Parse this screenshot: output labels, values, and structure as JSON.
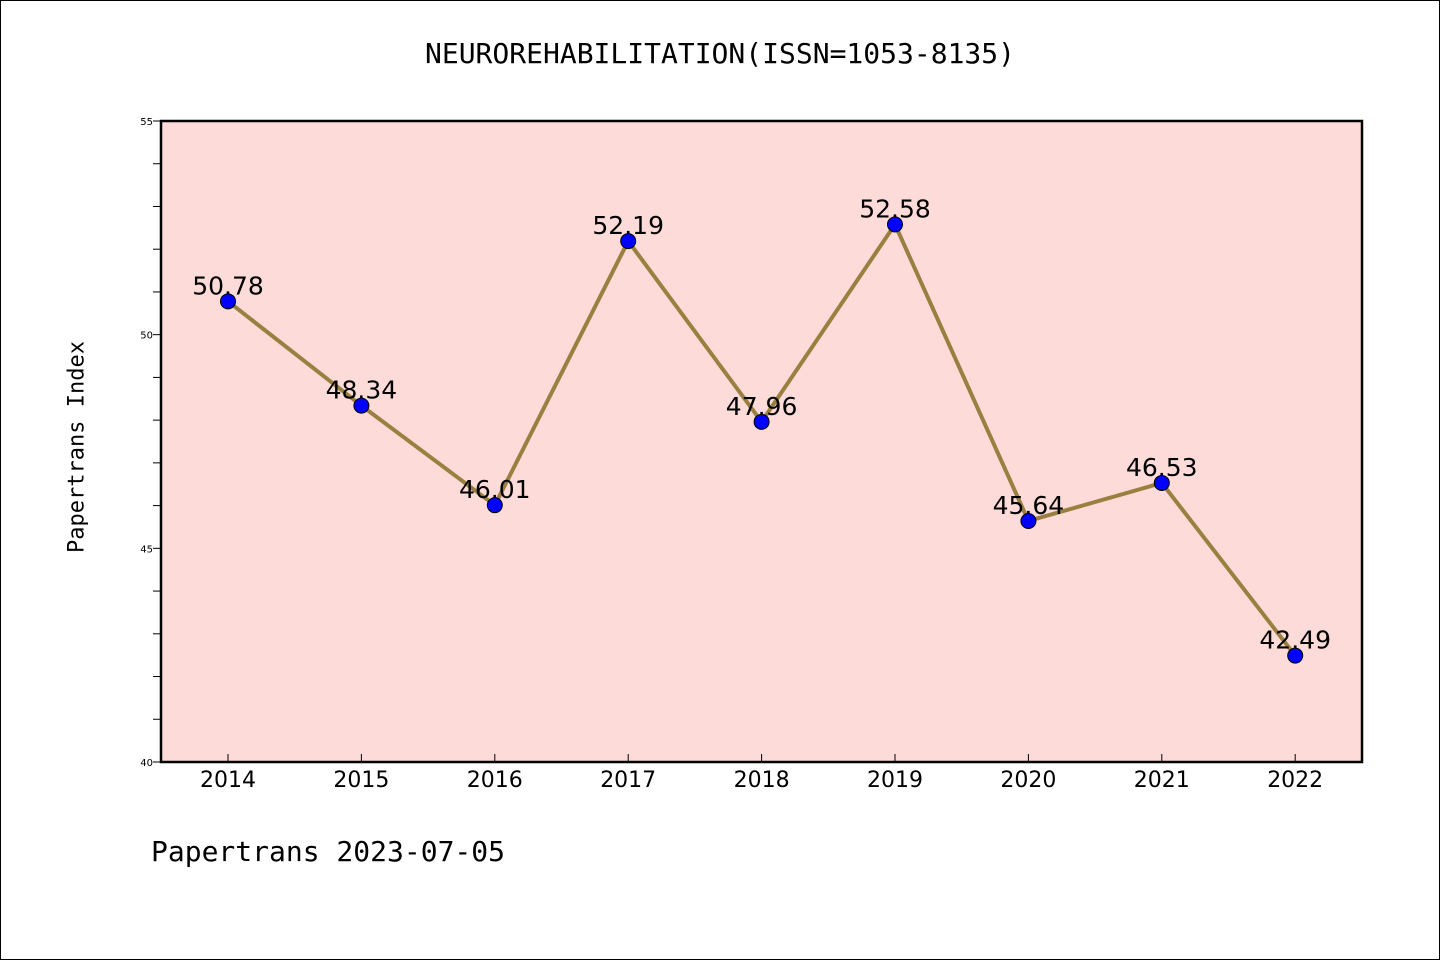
{
  "title": "NEUROREHABILITATION(ISSN=1053-8135)",
  "footer": "Papertrans 2023-07-05",
  "colors": {
    "plot_background": "#fddbd8",
    "line": "#9a8040",
    "marker": "#0000ff",
    "axis": "#000000"
  },
  "chart_data": {
    "type": "line",
    "title": "NEUROREHABILITATION(ISSN=1053-8135)",
    "xlabel": "",
    "ylabel": "Papertrans Index",
    "categories": [
      "2014",
      "2015",
      "2016",
      "2017",
      "2018",
      "2019",
      "2020",
      "2021",
      "2022"
    ],
    "values": [
      50.78,
      48.34,
      46.01,
      52.19,
      47.96,
      52.58,
      45.64,
      46.53,
      42.49
    ],
    "data_labels": [
      "50.78",
      "48.34",
      "46.01",
      "52.19",
      "47.96",
      "52.58",
      "45.64",
      "46.53",
      "42.49"
    ],
    "ylim": [
      40,
      55
    ],
    "yticks": [
      40,
      45,
      50,
      55
    ],
    "ytick_labels": [
      "40",
      "45",
      "50",
      "55"
    ],
    "grid": false,
    "legend": "none"
  }
}
